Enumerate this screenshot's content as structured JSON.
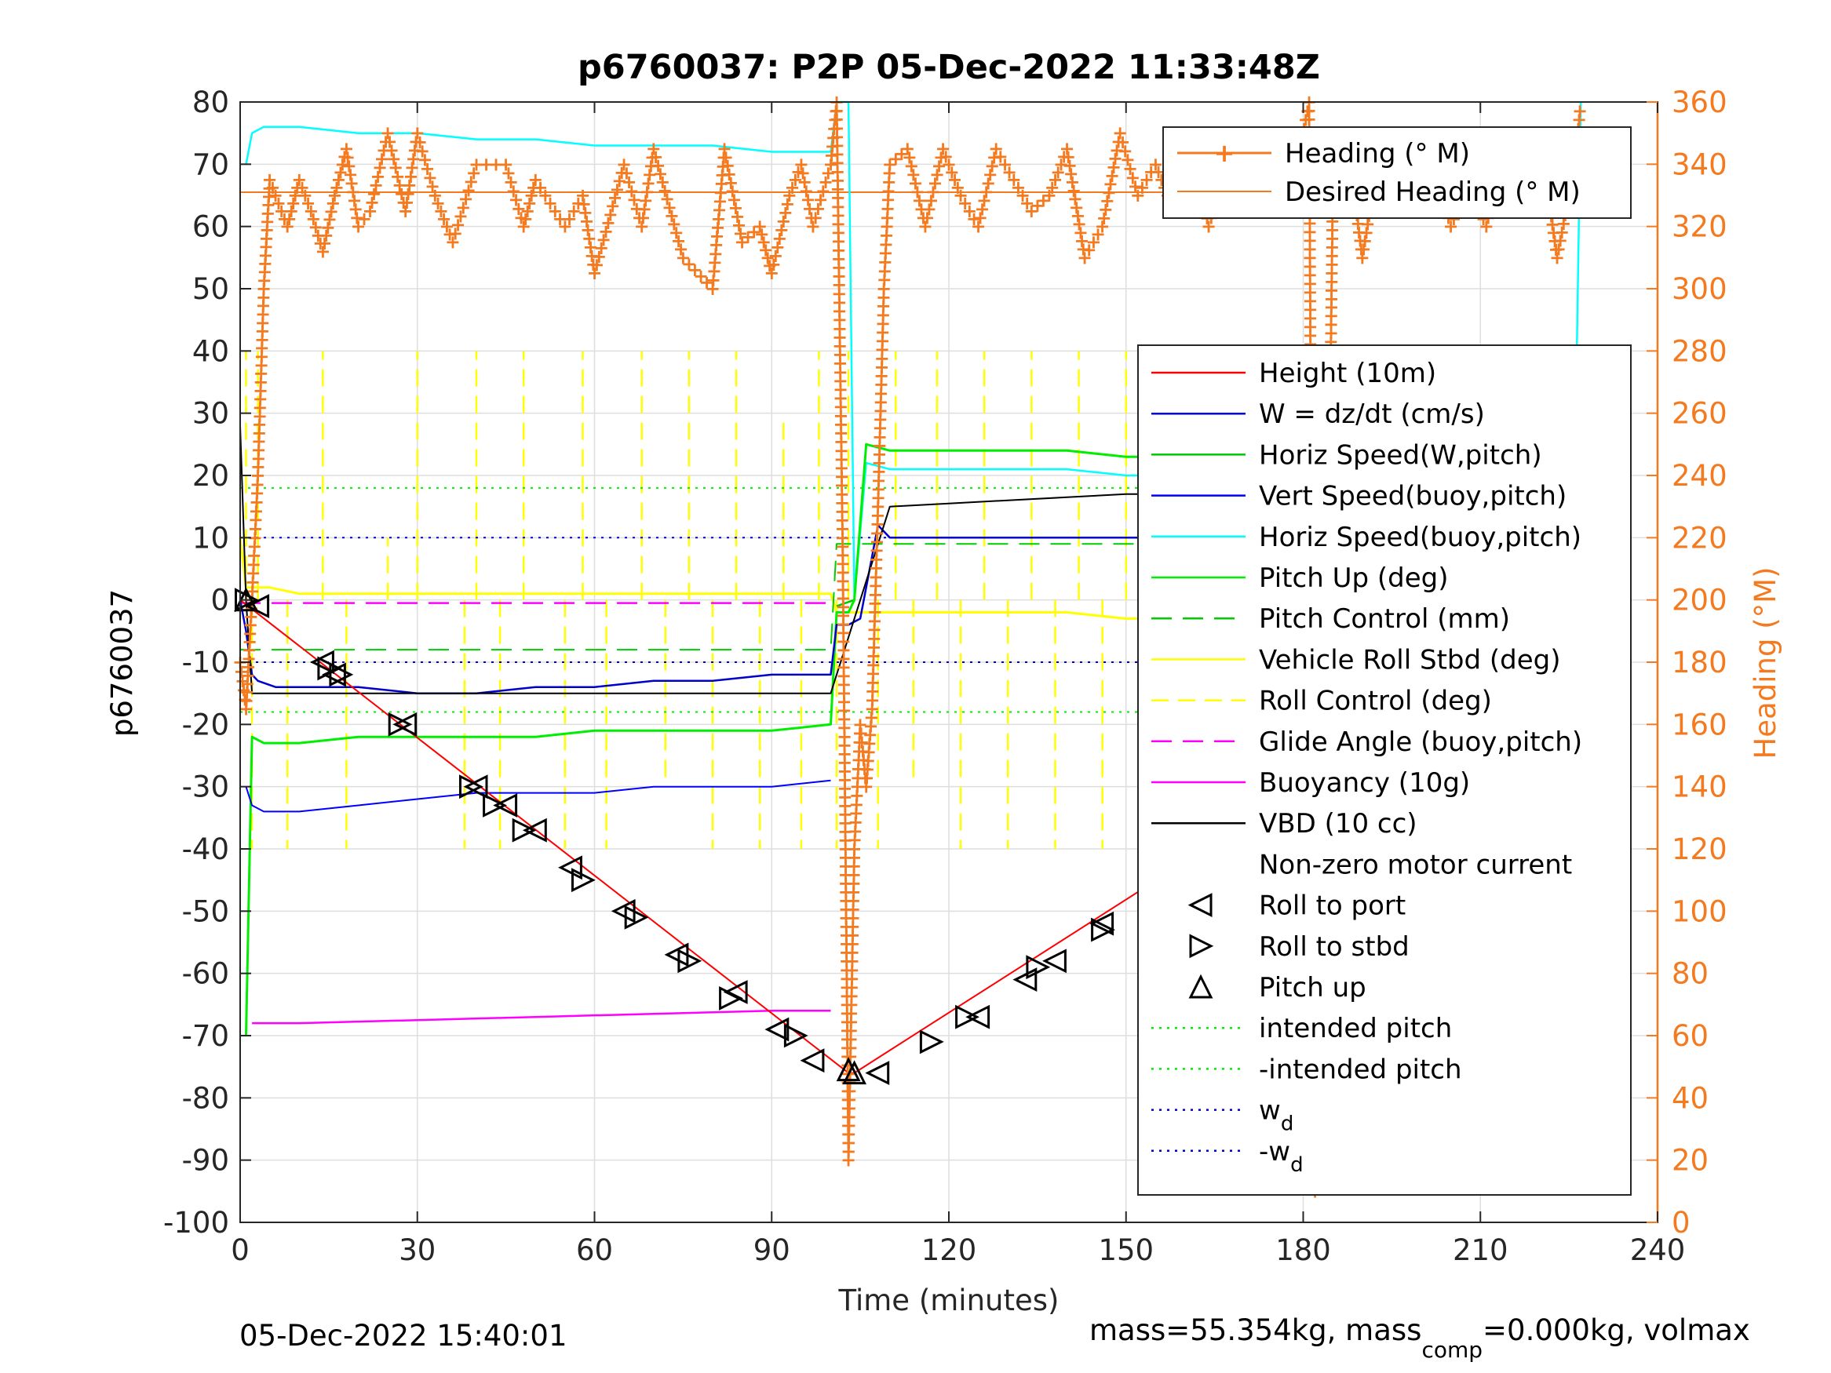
{
  "chart_data": {
    "type": "line",
    "title": "p6760037: P2P 05-Dec-2022 11:33:48Z",
    "xlabel": "Time (minutes)",
    "ylabel": "p6760037",
    "ylabel_right": "Heading (°M)",
    "xlim": [
      0,
      240
    ],
    "ylim": [
      -100,
      80
    ],
    "ylim_right": [
      0,
      360
    ],
    "xticks": [
      "0",
      "30",
      "60",
      "90",
      "120",
      "150",
      "180",
      "210",
      "240"
    ],
    "yticks": [
      "-100",
      "-90",
      "-80",
      "-70",
      "-60",
      "-50",
      "-40",
      "-30",
      "-20",
      "-10",
      "0",
      "10",
      "20",
      "30",
      "40",
      "50",
      "60",
      "70",
      "80"
    ],
    "yticks_right": [
      "0",
      "20",
      "40",
      "60",
      "80",
      "100",
      "120",
      "140",
      "160",
      "180",
      "200",
      "220",
      "240",
      "260",
      "280",
      "300",
      "320",
      "340",
      "360"
    ],
    "grid": true,
    "colors": {
      "heading": "#f47a20",
      "height": "#ff0000",
      "w": "#0000cc",
      "horiz_w": "#00c800",
      "vert_buoy": "#0000ff",
      "horiz_buoy": "#00ffff",
      "pitch_up": "#00ee00",
      "pitch_control": "#00cc00",
      "roll": "#ffff00",
      "glide": "#ff00ff",
      "buoyancy": "#ff00ff",
      "vbd": "#000000"
    },
    "legend_heading": {
      "placement": "top-right",
      "entries": [
        "Heading (° M)",
        "Desired Heading (° M)"
      ]
    },
    "legend_main": {
      "placement": "right",
      "entries": [
        "Height (10m)",
        "W = dz/dt (cm/s)",
        "Horiz Speed(W,pitch)",
        "Vert Speed(buoy,pitch)",
        "Horiz Speed(buoy,pitch)",
        "Pitch Up (deg)",
        "Pitch Control (mm)",
        "Vehicle Roll Stbd (deg)",
        "Roll Control (deg)",
        "Glide Angle (buoy,pitch)",
        "Buoyancy (10g)",
        "VBD (10 cc)",
        "Non-zero motor current",
        "Roll to port",
        "Roll to stbd",
        "Pitch up",
        "intended pitch",
        "-intended pitch",
        "w",
        "-w"
      ],
      "subscript": "d"
    },
    "series": [
      {
        "name": "Height (10m)",
        "axis": "left",
        "x": [
          0,
          103,
          104,
          227
        ],
        "y": [
          0,
          -76,
          -76,
          -1.5
        ]
      },
      {
        "name": "W = dz/dt (cm/s)",
        "axis": "left",
        "x": [
          0,
          1,
          2,
          3,
          6,
          10,
          20,
          30,
          40,
          50,
          60,
          70,
          80,
          90,
          100,
          101,
          103,
          105,
          108,
          110,
          120,
          130,
          140,
          150,
          160,
          170,
          180,
          190,
          200,
          210,
          220,
          227
        ],
        "y": [
          0,
          -5,
          -12,
          -13,
          -14,
          -14,
          -14,
          -15,
          -15,
          -14,
          -14,
          -13,
          -13,
          -12,
          -12,
          -4,
          -4,
          -3,
          12,
          10,
          10,
          10,
          10,
          10,
          10,
          10,
          10,
          10,
          10,
          10,
          10,
          12
        ]
      },
      {
        "name": "Horiz Speed(W,pitch)",
        "axis": "left",
        "x": [
          101,
          104,
          106,
          110,
          120,
          130,
          140,
          150,
          160,
          170,
          180,
          190,
          200,
          210,
          220,
          227
        ],
        "y": [
          -1,
          0,
          25,
          24,
          24,
          24,
          24,
          23,
          23,
          23,
          23,
          23,
          23,
          23,
          23,
          23
        ]
      },
      {
        "name": "Vert Speed(buoy,pitch)",
        "axis": "left",
        "x": [
          1,
          2,
          4,
          10,
          20,
          30,
          40,
          50,
          60,
          70,
          80,
          90,
          100
        ],
        "y": [
          -30,
          -33,
          -34,
          -34,
          -33,
          -32,
          -31,
          -31,
          -31,
          -30,
          -30,
          -30,
          -29
        ]
      },
      {
        "name": "Horiz Speed(buoy,pitch)",
        "axis": "left",
        "x": [
          1,
          2,
          4,
          10,
          20,
          30,
          40,
          50,
          60,
          70,
          80,
          90,
          100,
          101,
          103,
          104,
          106,
          110,
          120,
          130,
          140,
          150,
          160,
          170,
          180,
          190,
          200,
          210,
          220,
          226,
          227
        ],
        "y": [
          70,
          75,
          76,
          76,
          75,
          75,
          74,
          74,
          73,
          73,
          73,
          72,
          72,
          80,
          80,
          0,
          22,
          21,
          21,
          21,
          21,
          20,
          20,
          20,
          20,
          20,
          20,
          20,
          20,
          20,
          80
        ]
      },
      {
        "name": "Pitch Up (deg)",
        "axis": "left",
        "x": [
          1,
          2,
          4,
          10,
          20,
          30,
          40,
          50,
          60,
          70,
          80,
          90,
          100,
          101,
          103,
          104,
          106,
          110,
          120,
          130,
          140,
          150,
          160,
          170,
          180,
          190,
          200,
          210,
          220,
          227
        ],
        "y": [
          -70,
          -22,
          -23,
          -23,
          -22,
          -22,
          -22,
          -22,
          -21,
          -21,
          -21,
          -21,
          -20,
          -2,
          -2,
          0,
          25,
          24,
          24,
          24,
          24,
          23,
          23,
          23,
          23,
          23,
          23,
          23,
          23,
          23
        ]
      },
      {
        "name": "Pitch Control (mm)",
        "axis": "left",
        "x": [
          0,
          100,
          101,
          227
        ],
        "y": [
          -8,
          -8,
          9,
          9
        ]
      },
      {
        "name": "Vehicle Roll Stbd (deg)",
        "axis": "left",
        "x": [
          0,
          1,
          5,
          10,
          20,
          30,
          40,
          50,
          60,
          70,
          80,
          90,
          100,
          101,
          110,
          120,
          130,
          140,
          150,
          160,
          170,
          180,
          190,
          200,
          210,
          220,
          227
        ],
        "y": [
          10,
          2,
          2,
          1,
          1,
          1,
          1,
          1,
          1,
          1,
          1,
          1,
          1,
          -2,
          -2,
          -2,
          -2,
          -2,
          -3,
          -3,
          -3,
          -3,
          -3,
          -3,
          -3,
          -3,
          -3
        ]
      },
      {
        "name": "Glide Angle (buoy,pitch)",
        "axis": "left",
        "x": [
          0,
          100
        ],
        "y": [
          -0.5,
          -0.5
        ]
      },
      {
        "name": "Buoyancy (10g)",
        "axis": "left",
        "x": [
          2,
          10,
          30,
          50,
          70,
          90,
          100
        ],
        "y": [
          -68,
          -68,
          -67.5,
          -67,
          -66.5,
          -66,
          -66
        ]
      },
      {
        "name": "VBD (10 cc)",
        "axis": "left",
        "x": [
          0,
          1,
          2,
          10,
          30,
          50,
          70,
          90,
          100,
          110,
          120,
          130,
          140,
          150,
          160,
          170,
          180,
          190,
          200,
          210,
          220,
          225,
          226
        ],
        "y": [
          28,
          0,
          -15,
          -15,
          -15,
          -15,
          -15,
          -15,
          -15,
          15,
          15.5,
          16,
          16.5,
          17,
          17,
          17,
          17,
          17,
          17,
          17,
          17,
          17.5,
          20
        ]
      },
      {
        "name": "intended pitch",
        "axis": "left",
        "x": [
          0,
          227
        ],
        "y": [
          18,
          18
        ]
      },
      {
        "name": "-intended pitch",
        "axis": "left",
        "x": [
          0,
          227
        ],
        "y": [
          -18,
          -18
        ]
      },
      {
        "name": "w",
        "axis": "left",
        "x": [
          0,
          227
        ],
        "y": [
          10,
          10
        ]
      },
      {
        "name": "-w",
        "axis": "left",
        "x": [
          0,
          227
        ],
        "y": [
          -10,
          -10
        ]
      },
      {
        "name": "Desired Heading (° M)",
        "axis": "right",
        "x": [
          0,
          227
        ],
        "y": [
          331,
          331
        ]
      }
    ],
    "heading_trace": {
      "x": [
        0,
        1,
        2,
        3,
        4,
        5,
        8,
        10,
        12,
        14,
        16,
        18,
        20,
        22,
        25,
        28,
        30,
        33,
        36,
        40,
        45,
        48,
        50,
        55,
        58,
        60,
        65,
        68,
        70,
        75,
        80,
        82,
        85,
        88,
        90,
        93,
        95,
        97,
        100,
        101,
        102,
        103,
        104,
        105,
        106,
        107,
        108,
        109,
        110,
        113,
        116,
        119,
        122,
        125,
        128,
        131,
        134,
        137,
        140,
        143,
        146,
        149,
        152,
        155,
        158,
        161,
        164,
        167,
        170,
        173,
        176,
        179,
        181,
        182,
        183,
        185,
        188,
        190,
        193,
        196,
        199,
        202,
        205,
        208,
        211,
        214,
        217,
        220,
        223,
        226,
        227
      ],
      "y": [
        180,
        165,
        200,
        240,
        300,
        335,
        320,
        335,
        325,
        312,
        330,
        345,
        320,
        325,
        350,
        325,
        350,
        330,
        315,
        340,
        340,
        320,
        335,
        320,
        330,
        305,
        340,
        320,
        345,
        310,
        300,
        345,
        315,
        320,
        305,
        330,
        340,
        320,
        340,
        360,
        220,
        20,
        120,
        160,
        140,
        165,
        230,
        300,
        340,
        345,
        320,
        345,
        330,
        320,
        345,
        335,
        325,
        330,
        345,
        310,
        320,
        350,
        330,
        340,
        325,
        350,
        320,
        340,
        330,
        350,
        325,
        340,
        360,
        10,
        20,
        330,
        340,
        310,
        345,
        325,
        335,
        340,
        320,
        335,
        320,
        345,
        335,
        350,
        310,
        340,
        360
      ]
    },
    "markers": {
      "roll_to_port": {
        "x": [
          3,
          14,
          16,
          28,
          40,
          45,
          50,
          56,
          65,
          74,
          84,
          91,
          97,
          108,
          125,
          133,
          138,
          146,
          157,
          163,
          169,
          175,
          183,
          188,
          200,
          210,
          218,
          221,
          223,
          225
        ],
        "y": [
          -1,
          -10,
          -12,
          -20,
          -30,
          -33,
          -37,
          -43,
          -50,
          -57,
          -63,
          -69,
          -74,
          -76,
          -67,
          -61,
          -58,
          -52,
          -46,
          -43,
          -39,
          -35,
          -30,
          -26,
          -18,
          -13,
          -7,
          -5,
          -4,
          -2
        ]
      },
      "roll_to_stbd": {
        "x": [
          1,
          15,
          17,
          27,
          39,
          43,
          48,
          58,
          67,
          76,
          83,
          94,
          117,
          123,
          135,
          146,
          155,
          165,
          172,
          185,
          194,
          208,
          216,
          220,
          222,
          226
        ],
        "y": [
          0,
          -11,
          -12,
          -20,
          -30,
          -33,
          -37,
          -45,
          -51,
          -58,
          -64,
          -70,
          -71,
          -67,
          -59,
          -53,
          -47,
          -41,
          -38,
          -28,
          -22,
          -13,
          -8,
          -6,
          -4,
          -2
        ]
      },
      "pitch_up": {
        "x": [
          1,
          103,
          104,
          226
        ],
        "y": [
          0,
          -75.5,
          -76,
          -1.5
        ]
      }
    },
    "roll_control_spikes": {
      "x": [
        1,
        2,
        3,
        8,
        14,
        18,
        25,
        30,
        38,
        40,
        44,
        48,
        55,
        58,
        62,
        68,
        72,
        76,
        80,
        84,
        88,
        92,
        95,
        98,
        101,
        103,
        108,
        111,
        114,
        118,
        122,
        126,
        130,
        134,
        138,
        142,
        146,
        150,
        154,
        158,
        162,
        166,
        170,
        174,
        178,
        182,
        186,
        190,
        194,
        198,
        202,
        206,
        210,
        214,
        218,
        222,
        225
      ],
      "y": [
        40,
        -40,
        40,
        -40,
        40,
        -40,
        10,
        40,
        -40,
        40,
        -40,
        40,
        -40,
        40,
        -40,
        40,
        -30,
        40,
        -40,
        40,
        -40,
        30,
        -40,
        40,
        -40,
        40,
        -40,
        40,
        -30,
        40,
        -40,
        40,
        -40,
        40,
        -40,
        40,
        -40,
        40,
        -40,
        40,
        -40,
        40,
        -40,
        40,
        -40,
        40,
        -40,
        40,
        -40,
        40,
        -40,
        40,
        -40,
        40,
        -40,
        40,
        -40
      ]
    },
    "footer_left": "05-Dec-2022 15:40:01",
    "footer_right": {
      "prefix": "mass=55.354kg, mass",
      "sub": "comp",
      "suffix": "=0.000kg, volmax"
    }
  }
}
